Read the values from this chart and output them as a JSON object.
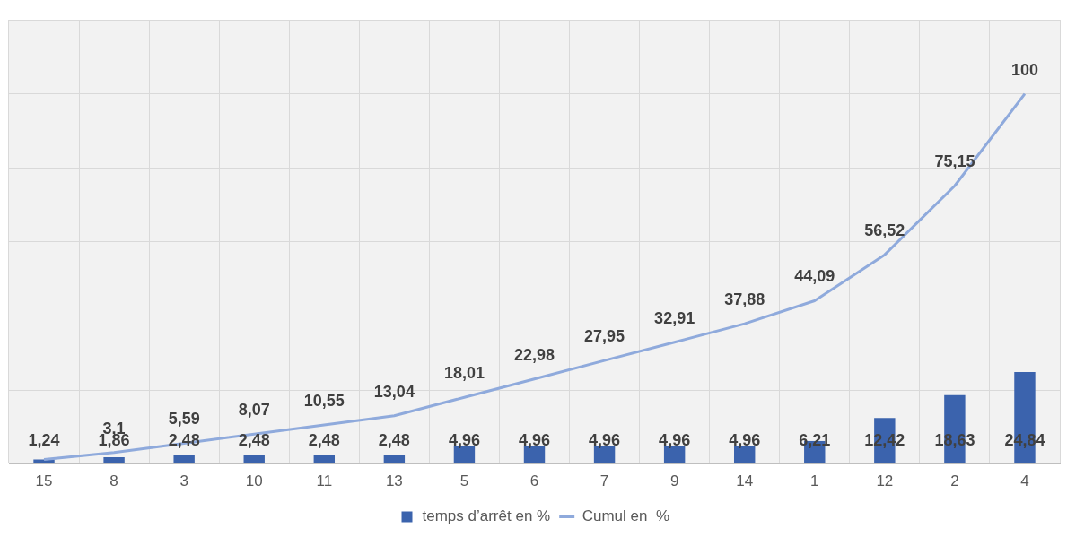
{
  "chart_data": {
    "type": "bar",
    "categories": [
      "15",
      "8",
      "3",
      "10",
      "11",
      "13",
      "5",
      "6",
      "7",
      "9",
      "14",
      "1",
      "12",
      "2",
      "4"
    ],
    "series": [
      {
        "name": "temps d’arrêt en %",
        "type": "bar",
        "color": "#3b63ad",
        "values": [
          1.24,
          1.86,
          2.48,
          2.48,
          2.48,
          2.48,
          4.96,
          4.96,
          4.96,
          4.96,
          4.96,
          6.21,
          12.42,
          18.63,
          24.84
        ],
        "value_labels": [
          "1,24",
          "1,86",
          "2,48",
          "2,48",
          "2,48",
          "2,48",
          "4,96",
          "4,96",
          "4,96",
          "4,96",
          "4,96",
          "6,21",
          "12,42",
          "18,63",
          "24,84"
        ]
      },
      {
        "name": "Cumul en  %",
        "type": "line",
        "color": "#8faadc",
        "values": [
          1.24,
          3.1,
          5.59,
          8.07,
          10.55,
          13.04,
          18.01,
          22.98,
          27.95,
          32.91,
          37.88,
          44.09,
          56.52,
          75.15,
          100
        ],
        "value_labels": [
          null,
          "3,1",
          "5,59",
          "8,07",
          "10,55",
          "13,04",
          "18,01",
          "22,98",
          "27,95",
          "32,91",
          "37,88",
          "44,09",
          "56,52",
          "75,15",
          "100"
        ]
      }
    ],
    "ylim": [
      0,
      120
    ],
    "yticks": [
      0,
      20,
      40,
      60,
      80,
      100,
      120
    ],
    "tick_labels": "x",
    "grid": true,
    "legend": "bottom",
    "marker": "none"
  }
}
